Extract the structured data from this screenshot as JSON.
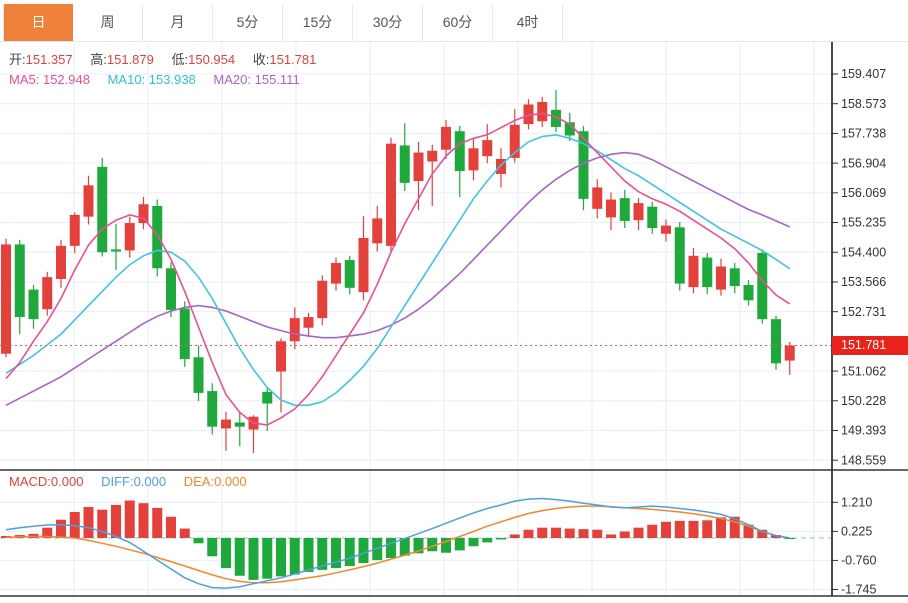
{
  "tabs": {
    "items": [
      {
        "label": "日",
        "active": true
      },
      {
        "label": "周",
        "active": false
      },
      {
        "label": "月",
        "active": false
      },
      {
        "label": "5分",
        "active": false
      },
      {
        "label": "15分",
        "active": false
      },
      {
        "label": "30分",
        "active": false
      },
      {
        "label": "60分",
        "active": false
      },
      {
        "label": "4时",
        "active": false
      }
    ]
  },
  "legend": {
    "ohlc": [
      {
        "label": "开:",
        "value": "151.357"
      },
      {
        "label": "高:",
        "value": "151.879"
      },
      {
        "label": "低:",
        "value": "150.954"
      },
      {
        "label": "收:",
        "value": "151.781"
      }
    ],
    "ma": [
      {
        "label": "MA5:",
        "value": "152.948"
      },
      {
        "label": "MA10:",
        "value": "153.938"
      },
      {
        "label": "MA20:",
        "value": "155.111"
      }
    ],
    "macd": [
      {
        "label": "MACD:",
        "value": "0.000"
      },
      {
        "label": "DIFF:",
        "value": "0.000"
      },
      {
        "label": "DEA:",
        "value": "0.000"
      }
    ]
  },
  "price_axis": {
    "current_label": "151.781"
  },
  "chart_data": {
    "type": "candlestick",
    "timeframe": "日",
    "title": "Daily candlestick chart with MA5/MA10/MA20 and MACD",
    "ohlc_display": {
      "open": 151.357,
      "high": 151.879,
      "low": 150.954,
      "close": 151.781
    },
    "current_price": 151.781,
    "y_axis_ticks": [
      159.407,
      158.573,
      157.738,
      156.904,
      156.069,
      155.235,
      154.4,
      153.566,
      152.731,
      151.062,
      150.228,
      149.393,
      148.559
    ],
    "macd_axis_ticks": [
      1.21,
      0.225,
      -0.76,
      -1.745
    ],
    "candles": [
      [
        151.55,
        154.78,
        151.45,
        154.62
      ],
      [
        154.62,
        154.75,
        152.1,
        152.58
      ],
      [
        153.35,
        153.48,
        152.25,
        152.52
      ],
      [
        152.8,
        153.85,
        152.62,
        153.7
      ],
      [
        153.65,
        154.75,
        153.4,
        154.58
      ],
      [
        154.58,
        155.52,
        154.38,
        155.45
      ],
      [
        155.4,
        156.55,
        155.18,
        156.28
      ],
      [
        156.8,
        157.05,
        154.28,
        154.4
      ],
      [
        154.48,
        155.2,
        153.9,
        154.42
      ],
      [
        154.45,
        155.4,
        154.25,
        155.22
      ],
      [
        155.22,
        155.95,
        155.05,
        155.75
      ],
      [
        155.7,
        155.88,
        153.72,
        153.95
      ],
      [
        153.95,
        154.12,
        152.58,
        152.78
      ],
      [
        152.82,
        153.02,
        151.18,
        151.4
      ],
      [
        151.45,
        151.78,
        150.22,
        150.45
      ],
      [
        150.5,
        150.72,
        149.28,
        149.5
      ],
      [
        149.45,
        149.92,
        148.82,
        149.7
      ],
      [
        149.62,
        149.92,
        148.95,
        149.5
      ],
      [
        149.42,
        149.82,
        148.76,
        149.78
      ],
      [
        150.48,
        150.6,
        149.38,
        150.15
      ],
      [
        151.05,
        151.98,
        149.9,
        151.9
      ],
      [
        151.9,
        152.85,
        151.68,
        152.55
      ],
      [
        152.28,
        152.7,
        152.02,
        152.58
      ],
      [
        152.55,
        153.75,
        152.35,
        153.6
      ],
      [
        153.52,
        154.25,
        153.32,
        154.1
      ],
      [
        154.18,
        154.3,
        153.22,
        153.4
      ],
      [
        153.28,
        155.42,
        153.05,
        154.8
      ],
      [
        154.65,
        155.7,
        154.42,
        155.35
      ],
      [
        154.58,
        157.62,
        154.4,
        157.45
      ],
      [
        157.4,
        158.02,
        156.12,
        156.35
      ],
      [
        156.4,
        157.5,
        155.58,
        157.2
      ],
      [
        156.95,
        157.42,
        155.7,
        157.25
      ],
      [
        157.28,
        158.12,
        157.02,
        157.92
      ],
      [
        157.8,
        157.95,
        155.95,
        156.68
      ],
      [
        156.7,
        157.6,
        156.42,
        157.32
      ],
      [
        157.1,
        158.0,
        156.9,
        157.55
      ],
      [
        156.6,
        157.32,
        156.22,
        157.02
      ],
      [
        157.05,
        158.42,
        156.92,
        157.98
      ],
      [
        158.0,
        158.7,
        157.85,
        158.55
      ],
      [
        158.08,
        158.76,
        157.92,
        158.62
      ],
      [
        158.4,
        158.96,
        157.78,
        157.92
      ],
      [
        158.05,
        158.32,
        157.52,
        157.68
      ],
      [
        157.8,
        157.95,
        155.58,
        155.9
      ],
      [
        155.62,
        156.45,
        155.35,
        156.22
      ],
      [
        155.38,
        156.08,
        155.02,
        155.88
      ],
      [
        155.92,
        156.15,
        155.08,
        155.28
      ],
      [
        155.3,
        155.92,
        155.02,
        155.78
      ],
      [
        155.68,
        155.82,
        154.92,
        155.08
      ],
      [
        154.92,
        155.32,
        154.7,
        155.15
      ],
      [
        155.1,
        155.25,
        153.32,
        153.52
      ],
      [
        153.42,
        154.52,
        153.25,
        154.3
      ],
      [
        154.25,
        154.38,
        153.22,
        153.42
      ],
      [
        153.35,
        154.22,
        153.18,
        154.0
      ],
      [
        153.95,
        154.1,
        153.25,
        153.45
      ],
      [
        153.48,
        153.62,
        152.9,
        153.05
      ],
      [
        154.38,
        154.48,
        152.4,
        152.52
      ],
      [
        152.52,
        152.62,
        151.1,
        151.28
      ],
      [
        151.357,
        151.879,
        150.954,
        151.781
      ]
    ],
    "ma5": [
      150.85,
      151.3,
      151.9,
      152.45,
      153.1,
      153.9,
      154.6,
      155.05,
      155.3,
      155.45,
      155.35,
      154.9,
      154.2,
      153.3,
      152.3,
      151.3,
      150.4,
      149.9,
      149.6,
      149.55,
      149.75,
      150.0,
      150.4,
      150.9,
      151.5,
      152.1,
      152.7,
      153.5,
      154.4,
      155.2,
      155.9,
      156.6,
      157.1,
      157.45,
      157.6,
      157.7,
      157.9,
      158.1,
      158.25,
      158.3,
      158.2,
      158.0,
      157.6,
      157.2,
      156.8,
      156.4,
      156.1,
      155.9,
      155.75,
      155.55,
      155.3,
      155.05,
      154.8,
      154.5,
      154.1,
      153.6,
      153.2,
      152.948
    ],
    "ma10": [
      151.0,
      151.25,
      151.5,
      151.8,
      152.1,
      152.5,
      152.9,
      153.3,
      153.7,
      154.05,
      154.3,
      154.45,
      154.4,
      154.15,
      153.7,
      153.1,
      152.4,
      151.7,
      151.1,
      150.6,
      150.25,
      150.1,
      150.1,
      150.2,
      150.45,
      150.8,
      151.2,
      151.7,
      152.3,
      152.9,
      153.5,
      154.1,
      154.7,
      155.3,
      155.9,
      156.4,
      156.85,
      157.2,
      157.5,
      157.65,
      157.7,
      157.6,
      157.45,
      157.25,
      157.0,
      156.75,
      156.55,
      156.3,
      156.05,
      155.8,
      155.55,
      155.3,
      155.05,
      154.85,
      154.65,
      154.45,
      154.2,
      153.938
    ],
    "ma20": [
      150.1,
      150.3,
      150.5,
      150.7,
      150.9,
      151.15,
      151.4,
      151.65,
      151.9,
      152.15,
      152.4,
      152.6,
      152.75,
      152.85,
      152.9,
      152.85,
      152.75,
      152.6,
      152.45,
      152.3,
      152.2,
      152.1,
      152.05,
      152.0,
      152.0,
      152.05,
      152.1,
      152.2,
      152.35,
      152.55,
      152.8,
      153.1,
      153.45,
      153.8,
      154.2,
      154.6,
      155.0,
      155.4,
      155.8,
      156.15,
      156.45,
      156.7,
      156.9,
      157.05,
      157.15,
      157.2,
      157.15,
      157.0,
      156.8,
      156.6,
      156.4,
      156.2,
      156.0,
      155.8,
      155.6,
      155.45,
      155.28,
      155.111
    ],
    "macd": {
      "latest": {
        "macd": 0.0,
        "diff": 0.0,
        "dea": 0.0
      },
      "hist": [
        0.07,
        0.1,
        0.14,
        0.35,
        0.62,
        0.88,
        1.05,
        0.96,
        1.12,
        1.27,
        1.18,
        1.02,
        0.72,
        0.32,
        -0.18,
        -0.62,
        -1.02,
        -1.28,
        -1.42,
        -1.38,
        -1.3,
        -1.24,
        -1.15,
        -1.08,
        -1.02,
        -0.95,
        -0.85,
        -0.75,
        -0.68,
        -0.6,
        -0.52,
        -0.45,
        -0.5,
        -0.42,
        -0.28,
        -0.15,
        -0.05,
        0.12,
        0.28,
        0.35,
        0.35,
        0.32,
        0.3,
        0.28,
        0.12,
        0.22,
        0.35,
        0.45,
        0.55,
        0.58,
        0.58,
        0.6,
        0.7,
        0.72,
        0.45,
        0.28,
        0.1,
        -0.02
      ],
      "diff": [
        0.28,
        0.35,
        0.4,
        0.44,
        0.45,
        0.42,
        0.35,
        0.22,
        0.05,
        -0.15,
        -0.45,
        -0.75,
        -1.05,
        -1.35,
        -1.55,
        -1.68,
        -1.7,
        -1.65,
        -1.55,
        -1.45,
        -1.35,
        -1.22,
        -1.08,
        -0.95,
        -0.82,
        -0.68,
        -0.52,
        -0.35,
        -0.18,
        -0.02,
        0.15,
        0.32,
        0.5,
        0.68,
        0.85,
        1.0,
        1.12,
        1.25,
        1.32,
        1.34,
        1.3,
        1.25,
        1.18,
        1.12,
        1.05,
        1.02,
        1.05,
        1.08,
        1.05,
        1.0,
        0.95,
        0.88,
        0.8,
        0.65,
        0.45,
        0.22,
        0.08,
        0.0
      ],
      "dea": [
        0.02,
        0.04,
        0.05,
        0.05,
        0.03,
        0.0,
        -0.08,
        -0.18,
        -0.28,
        -0.4,
        -0.52,
        -0.66,
        -0.8,
        -0.95,
        -1.1,
        -1.25,
        -1.38,
        -1.47,
        -1.52,
        -1.52,
        -1.48,
        -1.42,
        -1.35,
        -1.28,
        -1.18,
        -1.08,
        -0.97,
        -0.85,
        -0.72,
        -0.58,
        -0.44,
        -0.28,
        -0.12,
        0.05,
        0.22,
        0.4,
        0.55,
        0.7,
        0.83,
        0.93,
        1.0,
        1.05,
        1.08,
        1.08,
        1.06,
        1.03,
        1.0,
        0.97,
        0.93,
        0.88,
        0.82,
        0.75,
        0.66,
        0.55,
        0.4,
        0.22,
        0.08,
        0.0
      ]
    },
    "colors": {
      "up": "#e2413c",
      "down": "#1fa83c",
      "ma5": "#ec4f94",
      "ma10": "#3ec6dc",
      "ma20": "#a863c8",
      "diff": "#4f9fe0",
      "dea": "#f5862e",
      "zero_line": "#aadcec",
      "price_line": "#f15b4f",
      "grid": "#e9eef6",
      "axis": "#333333",
      "badge_bg": "#e8231c",
      "accent": "#ef813a"
    },
    "legend_position": "top-left",
    "grid": true
  }
}
